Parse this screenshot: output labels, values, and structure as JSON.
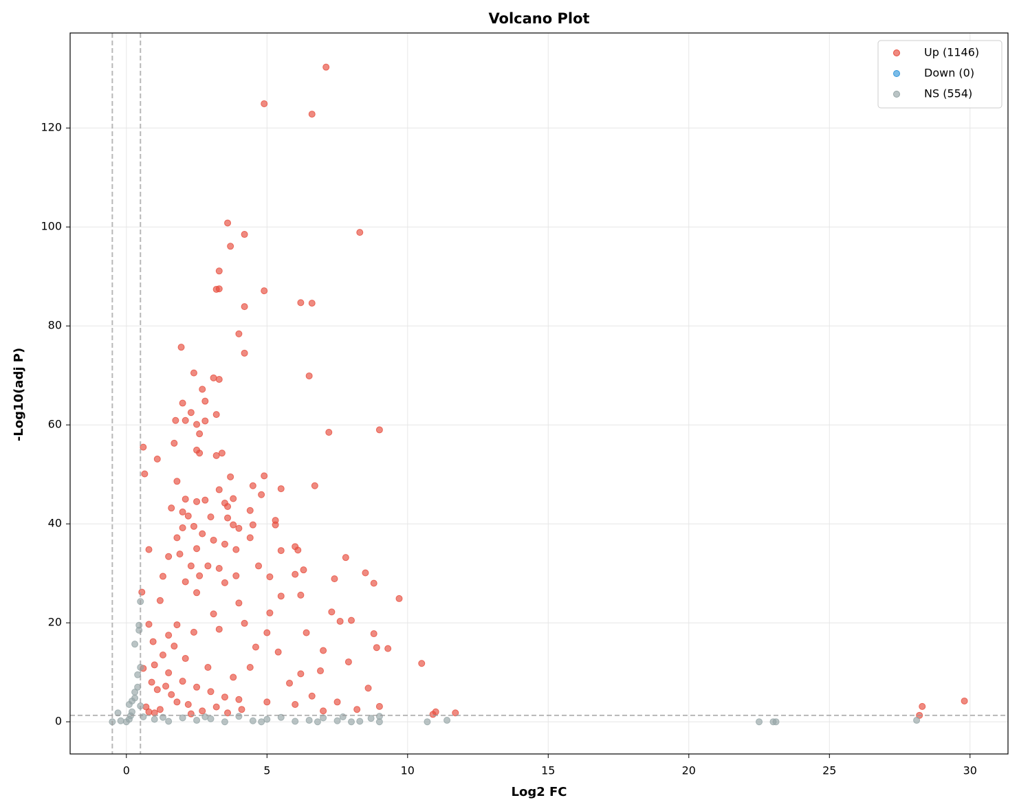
{
  "chart_data": {
    "type": "scatter",
    "title": "Volcano Plot",
    "x_label": "Log2 FC",
    "y_label": "-Log10(adj P)",
    "xlim": [
      -2,
      31.35
    ],
    "ylim": [
      -6.5,
      139.2
    ],
    "xticks": [
      0,
      5,
      10,
      15,
      20,
      25,
      30
    ],
    "yticks": [
      0,
      20,
      40,
      60,
      80,
      100,
      120
    ],
    "grid": true,
    "legend": "upper right",
    "threshold_x": [
      -0.5,
      0.5
    ],
    "threshold_y": 1.3,
    "series": [
      {
        "name": "Up (1146)",
        "color": "#e74c3c",
        "x": [
          7.1,
          4.9,
          6.6,
          3.6,
          8.3,
          4.2,
          3.7,
          3.3,
          3.2,
          3.3,
          4.9,
          6.2,
          6.6,
          4.2,
          1.95,
          4.0,
          4.2,
          2.4,
          3.1,
          3.3,
          6.5,
          2.7,
          2.8,
          2.0,
          3.2,
          2.3,
          1.75,
          2.1,
          2.5,
          2.8,
          7.2,
          9.0,
          2.6,
          1.7,
          0.6,
          2.5,
          2.6,
          3.2,
          3.4,
          1.1,
          0.65,
          1.8,
          3.7,
          4.9,
          4.5,
          6.7,
          5.5,
          3.3,
          4.8,
          2.1,
          2.8,
          2.5,
          3.5,
          3.8,
          3.6,
          1.6,
          2.0,
          4.4,
          2.2,
          3.0,
          3.6,
          5.3,
          5.3,
          2.4,
          2.0,
          3.8,
          4.0,
          4.5,
          2.7,
          1.8,
          3.1,
          4.4,
          0.8,
          1.5,
          1.9,
          2.5,
          3.5,
          3.9,
          5.5,
          6.0,
          6.1,
          7.8,
          2.3,
          2.9,
          3.3,
          4.7,
          6.3,
          8.5,
          1.3,
          2.6,
          3.9,
          5.1,
          6.0,
          7.4,
          8.8,
          2.1,
          3.5,
          1.2,
          2.5,
          4.0,
          5.5,
          6.2,
          9.7,
          7.3,
          5.1,
          3.1,
          8.0,
          7.6,
          4.2,
          1.8,
          6.4,
          8.8,
          2.4,
          3.3,
          5.0,
          0.8,
          7.0,
          9.3,
          8.9,
          4.6,
          5.4,
          10.5,
          7.9,
          6.2,
          1.0,
          1.5,
          2.0,
          2.5,
          3.0,
          3.5,
          4.0,
          5.0,
          6.0,
          7.0,
          8.2,
          9.0,
          11.0,
          11.7,
          10.9,
          28.3,
          29.8,
          28.2,
          0.7,
          1.2,
          1.6,
          2.2,
          1.1,
          0.9,
          1.4,
          1.8,
          2.7,
          3.2,
          0.8,
          1.3,
          1.7,
          2.1,
          0.95,
          1.5,
          2.9,
          3.8,
          4.4,
          5.8,
          6.6,
          7.5,
          8.6,
          6.9,
          4.1,
          3.6,
          2.3,
          1.0,
          0.6,
          0.55
        ],
        "values": [
          132.3,
          124.9,
          122.8,
          100.8,
          98.9,
          98.5,
          96.1,
          91.1,
          87.4,
          87.5,
          87.1,
          84.7,
          84.6,
          83.9,
          75.7,
          78.4,
          74.5,
          70.5,
          69.5,
          69.2,
          69.9,
          67.2,
          64.8,
          64.4,
          62.1,
          62.5,
          60.9,
          60.9,
          60.1,
          60.8,
          58.5,
          59.0,
          58.2,
          56.3,
          55.5,
          54.9,
          54.3,
          53.8,
          54.3,
          53.1,
          50.1,
          48.6,
          49.5,
          49.7,
          47.7,
          47.7,
          47.1,
          46.9,
          45.9,
          45.0,
          44.8,
          44.5,
          44.2,
          45.1,
          43.5,
          43.2,
          42.4,
          42.7,
          41.6,
          41.4,
          41.2,
          40.7,
          39.8,
          39.5,
          39.2,
          39.8,
          39.1,
          39.8,
          38.0,
          37.2,
          36.7,
          37.2,
          34.8,
          33.4,
          33.9,
          35.0,
          35.9,
          34.8,
          34.6,
          35.4,
          34.7,
          33.2,
          31.5,
          31.5,
          31.0,
          31.5,
          30.7,
          30.1,
          29.4,
          29.5,
          29.5,
          29.3,
          29.8,
          28.9,
          28.0,
          28.3,
          28.1,
          24.5,
          26.1,
          24.0,
          25.4,
          25.6,
          24.9,
          22.2,
          22.0,
          21.8,
          20.5,
          20.3,
          19.9,
          19.6,
          18.0,
          17.8,
          18.1,
          18.7,
          18.0,
          19.7,
          14.4,
          14.8,
          15.0,
          15.1,
          14.1,
          11.8,
          12.1,
          9.7,
          11.5,
          9.9,
          8.2,
          7.0,
          6.1,
          5.0,
          4.5,
          4.0,
          3.5,
          2.2,
          2.5,
          3.1,
          2.0,
          1.8,
          1.5,
          3.1,
          4.2,
          1.3,
          3.0,
          2.5,
          5.5,
          3.5,
          6.5,
          8.0,
          7.2,
          4.0,
          2.2,
          3.0,
          2.0,
          13.5,
          15.3,
          12.8,
          16.2,
          17.5,
          11.0,
          9.0,
          11.0,
          7.8,
          5.2,
          4.0,
          6.8,
          10.3,
          2.5,
          1.8,
          1.6,
          1.8,
          10.8,
          26.2
        ]
      },
      {
        "name": "Down (0)",
        "color": "#3498db",
        "x": [],
        "values": []
      },
      {
        "name": "NS (554)",
        "color": "#95a5a6",
        "x": [
          0.5,
          0.45,
          0.3,
          0.45,
          -0.3,
          -0.5,
          -0.2,
          0,
          0.1,
          0.2,
          0.3,
          0.4,
          0.5,
          0.4,
          0.2,
          0.1,
          0.6,
          1.0,
          1.5,
          2.0,
          2.5,
          3.0,
          3.5,
          4.0,
          4.5,
          5.0,
          5.5,
          6.0,
          6.5,
          7.0,
          7.5,
          8.0,
          8.3,
          8.7,
          9.0,
          9.0,
          10.7,
          11.4,
          22.5,
          23.0,
          23.1,
          28.1,
          0.3,
          0.5,
          0.15,
          1.3,
          2.8,
          4.8,
          6.8,
          7.7
        ],
        "values": [
          24.3,
          19.5,
          15.7,
          18.5,
          1.8,
          0,
          0.2,
          0,
          3.5,
          4.2,
          6.0,
          9.5,
          11.0,
          7.0,
          2.0,
          0.5,
          1.0,
          0.5,
          0.1,
          0.8,
          0.3,
          0.6,
          0,
          1.1,
          0.2,
          0.5,
          0.9,
          0.1,
          0.3,
          0.8,
          0.2,
          0,
          0.1,
          0.7,
          0,
          1.1,
          0,
          0.3,
          0,
          0,
          0,
          0.3,
          4.8,
          3.2,
          1.2,
          0.9,
          1.0,
          0,
          0,
          1.0
        ]
      }
    ]
  }
}
